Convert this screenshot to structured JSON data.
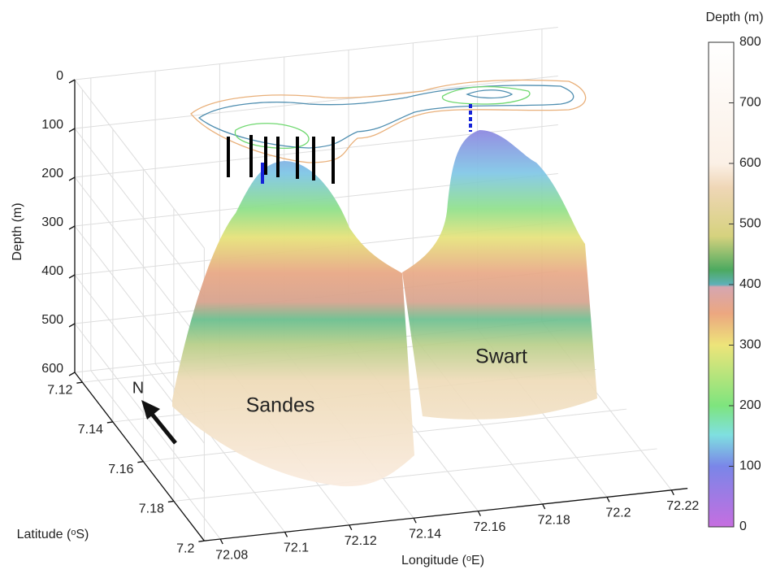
{
  "chart_data": {
    "type": "surface3d",
    "zlabel": "Depth (m)",
    "ylabel": "Latitude (ᵒS)",
    "xlabel": "Longitude (ᵒE)",
    "zlim": [
      0,
      600
    ],
    "zticks": [
      0,
      100,
      200,
      300,
      400,
      500,
      600
    ],
    "ylim": [
      7.115,
      7.2
    ],
    "yticks": [
      7.12,
      7.14,
      7.16,
      7.18,
      7.2
    ],
    "xlim": [
      72.075,
      72.225
    ],
    "xticks": [
      72.08,
      72.1,
      72.12,
      72.14,
      72.16,
      72.18,
      72.2,
      72.22
    ],
    "grid": true,
    "colorbar": {
      "label": "Depth (m)",
      "lim": [
        0,
        800
      ],
      "ticks": [
        0,
        100,
        200,
        300,
        400,
        500,
        600,
        700,
        800
      ]
    },
    "annotations": [
      "Sandes",
      "Swart",
      "N"
    ]
  }
}
